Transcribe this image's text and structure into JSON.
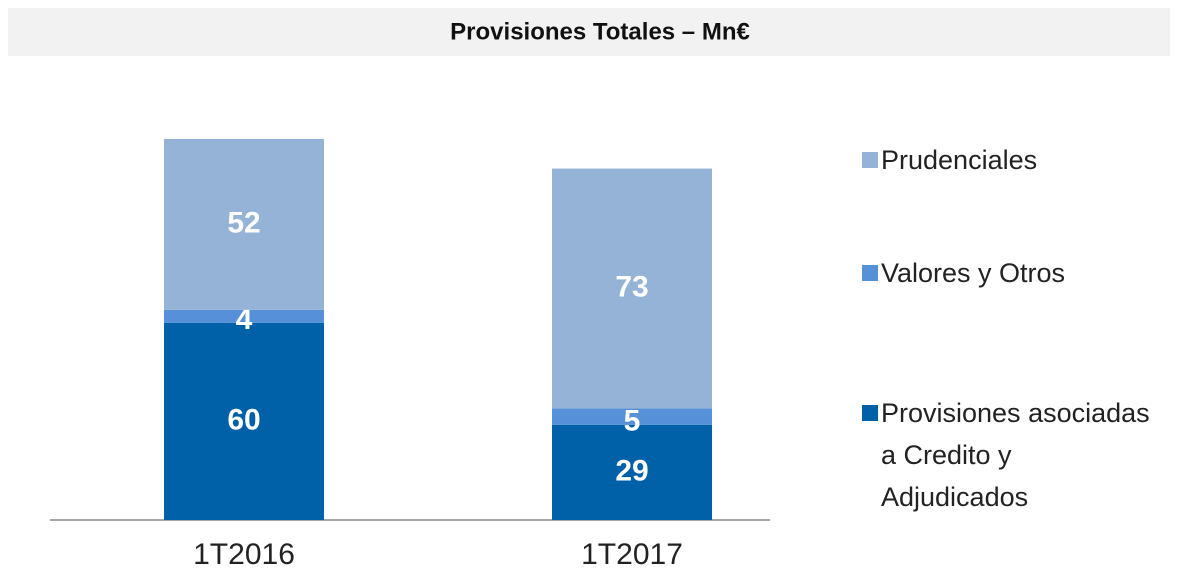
{
  "chart_data": {
    "type": "stacked_bar",
    "title": "Provisiones Totales – Mn€",
    "categories": [
      "1T2016",
      "1T2017"
    ],
    "series": [
      {
        "name": "Provisiones asociadas a Credito y Adjudicados",
        "color": "#0060a8",
        "values": [
          60,
          29
        ]
      },
      {
        "name": "Valores y Otros",
        "color": "#5590d8",
        "values": [
          4,
          5
        ]
      },
      {
        "name": "Prudenciales",
        "color": "#95b3d7",
        "values": [
          52,
          73
        ]
      }
    ]
  }
}
